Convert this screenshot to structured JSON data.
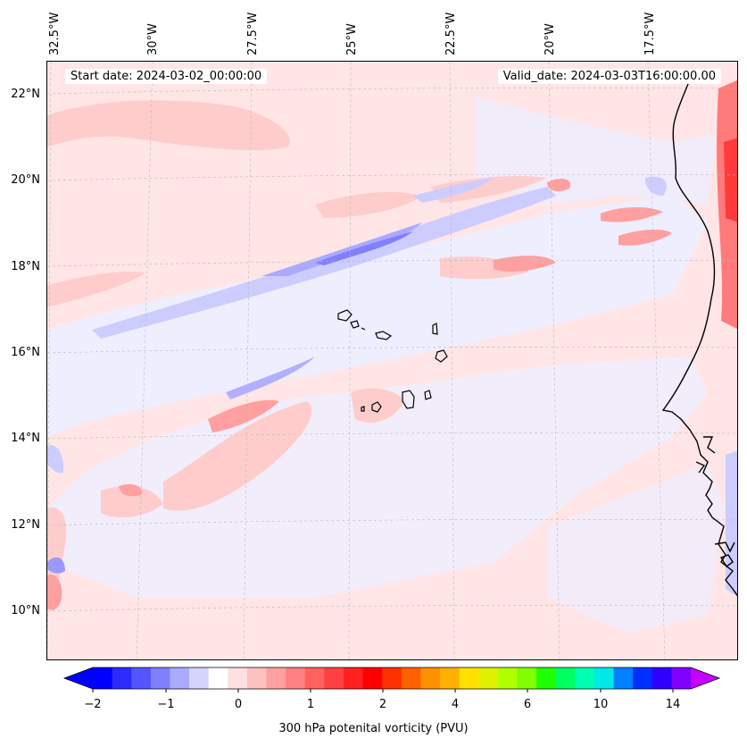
{
  "map": {
    "start_date": "Start date: 2024-03-02_00:00:00",
    "valid_date": "Valid_date: 2024-03-03T16:00:00.00",
    "lat_labels": [
      "22°N",
      "20°N",
      "18°N",
      "16°N",
      "14°N",
      "12°N",
      "10°N"
    ],
    "lon_labels": [
      "32.5°W",
      "30°W",
      "27.5°W",
      "25°W",
      "22.5°W",
      "20°W",
      "17.5°W"
    ],
    "colors": {
      "background": "#ffe5e5",
      "coast": "#000000",
      "grid": "#bbbbbb"
    }
  },
  "colorbar": {
    "title": "300 hPa potenital vorticity (PVU)",
    "tick_labels": [
      "−2",
      "−1",
      "0",
      "1",
      "2",
      "4",
      "6",
      "10",
      "14"
    ],
    "colors": [
      "#0000ff",
      "#2b2bff",
      "#5555ff",
      "#8080ff",
      "#aaaaff",
      "#d4d4ff",
      "#ffffff",
      "#ffe0e0",
      "#ffc0c0",
      "#ffa0a0",
      "#ff8080",
      "#ff6060",
      "#ff4040",
      "#ff2020",
      "#ff0000",
      "#ff3000",
      "#ff6000",
      "#ff9000",
      "#ffb000",
      "#ffe000",
      "#e0f000",
      "#b0ff00",
      "#80ff00",
      "#20ff00",
      "#00ff60",
      "#00ffb0",
      "#00e8e8",
      "#0080ff",
      "#0030ff",
      "#3000ff",
      "#8000ff"
    ],
    "over_color": "#c800ff"
  }
}
